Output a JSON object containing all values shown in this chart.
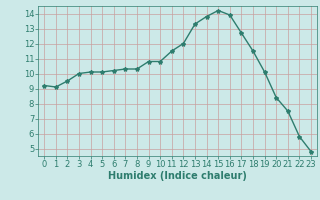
{
  "x": [
    0,
    1,
    2,
    3,
    4,
    5,
    6,
    7,
    8,
    9,
    10,
    11,
    12,
    13,
    14,
    15,
    16,
    17,
    18,
    19,
    20,
    21,
    22,
    23
  ],
  "y": [
    9.2,
    9.1,
    9.5,
    10.0,
    10.1,
    10.1,
    10.2,
    10.3,
    10.3,
    10.8,
    10.8,
    11.5,
    12.0,
    13.3,
    13.8,
    14.2,
    13.9,
    12.7,
    11.5,
    10.1,
    8.4,
    7.5,
    5.8,
    4.8
  ],
  "line_color": "#2e7d6e",
  "marker": "*",
  "marker_size": 3,
  "bg_color": "#cce9e8",
  "grid_color": "#c8a0a0",
  "xlabel": "Humidex (Indice chaleur)",
  "xlim": [
    -0.5,
    23.5
  ],
  "ylim": [
    4.5,
    14.5
  ],
  "yticks": [
    5,
    6,
    7,
    8,
    9,
    10,
    11,
    12,
    13,
    14
  ],
  "xticks": [
    0,
    1,
    2,
    3,
    4,
    5,
    6,
    7,
    8,
    9,
    10,
    11,
    12,
    13,
    14,
    15,
    16,
    17,
    18,
    19,
    20,
    21,
    22,
    23
  ],
  "tick_color": "#2e7d6e",
  "label_color": "#2e7d6e",
  "font_size": 6.0,
  "xlabel_fontsize": 7.0,
  "linewidth": 1.0
}
